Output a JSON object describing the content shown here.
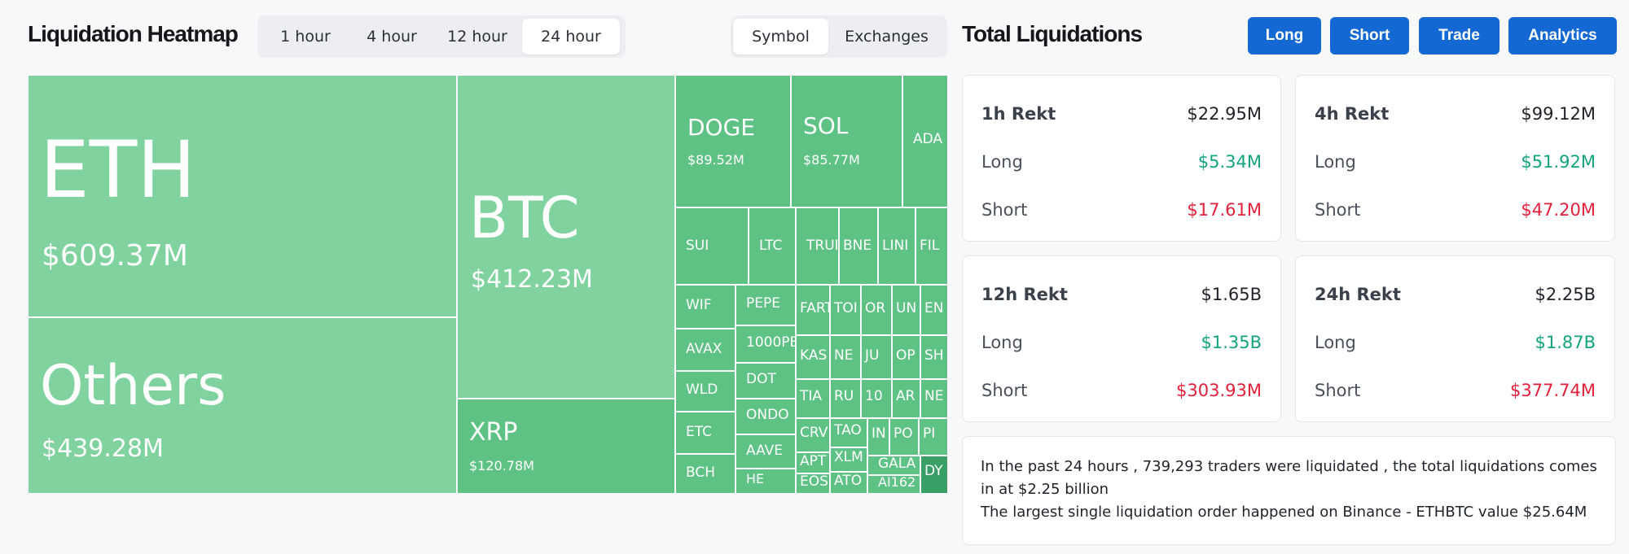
{
  "heatmap": {
    "title": "Liquidation Heatmap",
    "time_tabs": [
      {
        "label": "1 hour",
        "active": false
      },
      {
        "label": "4 hour",
        "active": false
      },
      {
        "label": "12 hour",
        "active": false
      },
      {
        "label": "24 hour",
        "active": true
      }
    ],
    "view_tabs": [
      {
        "label": "Symbol",
        "active": true
      },
      {
        "label": "Exchanges",
        "active": false
      }
    ],
    "cells": [
      {
        "symbol": "ETH",
        "value": "$609.37M",
        "shade": "#80d29f"
      },
      {
        "symbol": "Others",
        "value": "$439.28M",
        "shade": "#80d29f"
      },
      {
        "symbol": "BTC",
        "value": "$412.23M",
        "shade": "#80d29f"
      },
      {
        "symbol": "XRP",
        "value": "$120.78M",
        "shade": "#5ec285"
      },
      {
        "symbol": "DOGE",
        "value": "$89.52M",
        "shade": "#5ec285"
      },
      {
        "symbol": "SOL",
        "value": "$85.77M",
        "shade": "#5ec285"
      },
      {
        "symbol": "ADA",
        "value": "",
        "shade": "#5ec285"
      },
      {
        "symbol": "SUI",
        "value": "",
        "shade": "#5ec285"
      },
      {
        "symbol": "LTC",
        "value": "",
        "shade": "#5ec285"
      },
      {
        "symbol": "TRUI",
        "value": "",
        "shade": "#5ec285"
      },
      {
        "symbol": "BNE",
        "value": "",
        "shade": "#5ec285"
      },
      {
        "symbol": "LINI",
        "value": "",
        "shade": "#5ec285"
      },
      {
        "symbol": "FIL",
        "value": "",
        "shade": "#5ec285"
      },
      {
        "symbol": "WIF",
        "value": "",
        "shade": "#5ec285"
      },
      {
        "symbol": "PEPE",
        "value": "",
        "shade": "#5ec285"
      },
      {
        "symbol": "AVAX",
        "value": "",
        "shade": "#5ec285"
      },
      {
        "symbol": "1000PE",
        "value": "",
        "shade": "#5ec285"
      },
      {
        "symbol": "WLD",
        "value": "",
        "shade": "#5ec285"
      },
      {
        "symbol": "DOT",
        "value": "",
        "shade": "#5ec285"
      },
      {
        "symbol": "ETC",
        "value": "",
        "shade": "#5ec285"
      },
      {
        "symbol": "ONDO",
        "value": "",
        "shade": "#5ec285"
      },
      {
        "symbol": "BCH",
        "value": "",
        "shade": "#5ec285"
      },
      {
        "symbol": "AAVE",
        "value": "",
        "shade": "#5ec285"
      },
      {
        "symbol": "FARTCO",
        "value": "",
        "shade": "#5ec285"
      },
      {
        "symbol": "TOI",
        "value": "",
        "shade": "#5ec285"
      },
      {
        "symbol": "OR",
        "value": "",
        "shade": "#5ec285"
      },
      {
        "symbol": "UN",
        "value": "",
        "shade": "#5ec285"
      },
      {
        "symbol": "EN",
        "value": "",
        "shade": "#5ec285"
      },
      {
        "symbol": "HE",
        "value": "",
        "shade": "#5ec285"
      },
      {
        "symbol": "KAS",
        "value": "",
        "shade": "#5ec285"
      },
      {
        "symbol": "NE",
        "value": "",
        "shade": "#5ec285"
      },
      {
        "symbol": "JU",
        "value": "",
        "shade": "#5ec285"
      },
      {
        "symbol": "OP",
        "value": "",
        "shade": "#5ec285"
      },
      {
        "symbol": "SH",
        "value": "",
        "shade": "#5ec285"
      },
      {
        "symbol": "TIA",
        "value": "",
        "shade": "#5ec285"
      },
      {
        "symbol": "RU",
        "value": "",
        "shade": "#5ec285"
      },
      {
        "symbol": "10",
        "value": "",
        "shade": "#5ec285"
      },
      {
        "symbol": "AR",
        "value": "",
        "shade": "#5ec285"
      },
      {
        "symbol": "NE",
        "value": "",
        "shade": "#5ec285"
      },
      {
        "symbol": "CRV",
        "value": "",
        "shade": "#5ec285"
      },
      {
        "symbol": "APT",
        "value": "",
        "shade": "#5ec285"
      },
      {
        "symbol": "EOS",
        "value": "",
        "shade": "#5ec285"
      },
      {
        "symbol": "TAO",
        "value": "",
        "shade": "#5ec285"
      },
      {
        "symbol": "XLM",
        "value": "",
        "shade": "#5ec285"
      },
      {
        "symbol": "ATO",
        "value": "",
        "shade": "#5ec285"
      },
      {
        "symbol": "IN",
        "value": "",
        "shade": "#5ec285"
      },
      {
        "symbol": "PO",
        "value": "",
        "shade": "#5ec285"
      },
      {
        "symbol": "PI",
        "value": "",
        "shade": "#5ec285"
      },
      {
        "symbol": "GALA",
        "value": "",
        "shade": "#5ec285"
      },
      {
        "symbol": "AI162",
        "value": "",
        "shade": "#5ec285"
      },
      {
        "symbol": "DY",
        "value": "",
        "shade": "#3a9f66"
      }
    ]
  },
  "totals": {
    "title": "Total Liquidations",
    "buttons": [
      "Long",
      "Short",
      "Trade",
      "Analytics"
    ],
    "cards": [
      {
        "label": "1h Rekt",
        "total": "$22.95M",
        "long_label": "Long",
        "long": "$5.34M",
        "short_label": "Short",
        "short": "$17.61M"
      },
      {
        "label": "4h Rekt",
        "total": "$99.12M",
        "long_label": "Long",
        "long": "$51.92M",
        "short_label": "Short",
        "short": "$47.20M"
      },
      {
        "label": "12h Rekt",
        "total": "$1.65B",
        "long_label": "Long",
        "long": "$1.35B",
        "short_label": "Short",
        "short": "$303.93M"
      },
      {
        "label": "24h Rekt",
        "total": "$2.25B",
        "long_label": "Long",
        "long": "$1.87B",
        "short_label": "Short",
        "short": "$377.74M"
      }
    ],
    "summary_line1": "In the past 24 hours , 739,293 traders were liquidated , the total liquidations comes in at $2.25 billion",
    "summary_line2": "The largest single liquidation order happened on Binance - ETHBTC value $25.64M"
  },
  "colors": {
    "accent_blue": "#1468d4",
    "long_green": "#14a37f",
    "short_red": "#e3203a",
    "heat_light": "#80d29f",
    "heat_mid": "#5ec285",
    "heat_dark": "#3a9f66"
  }
}
